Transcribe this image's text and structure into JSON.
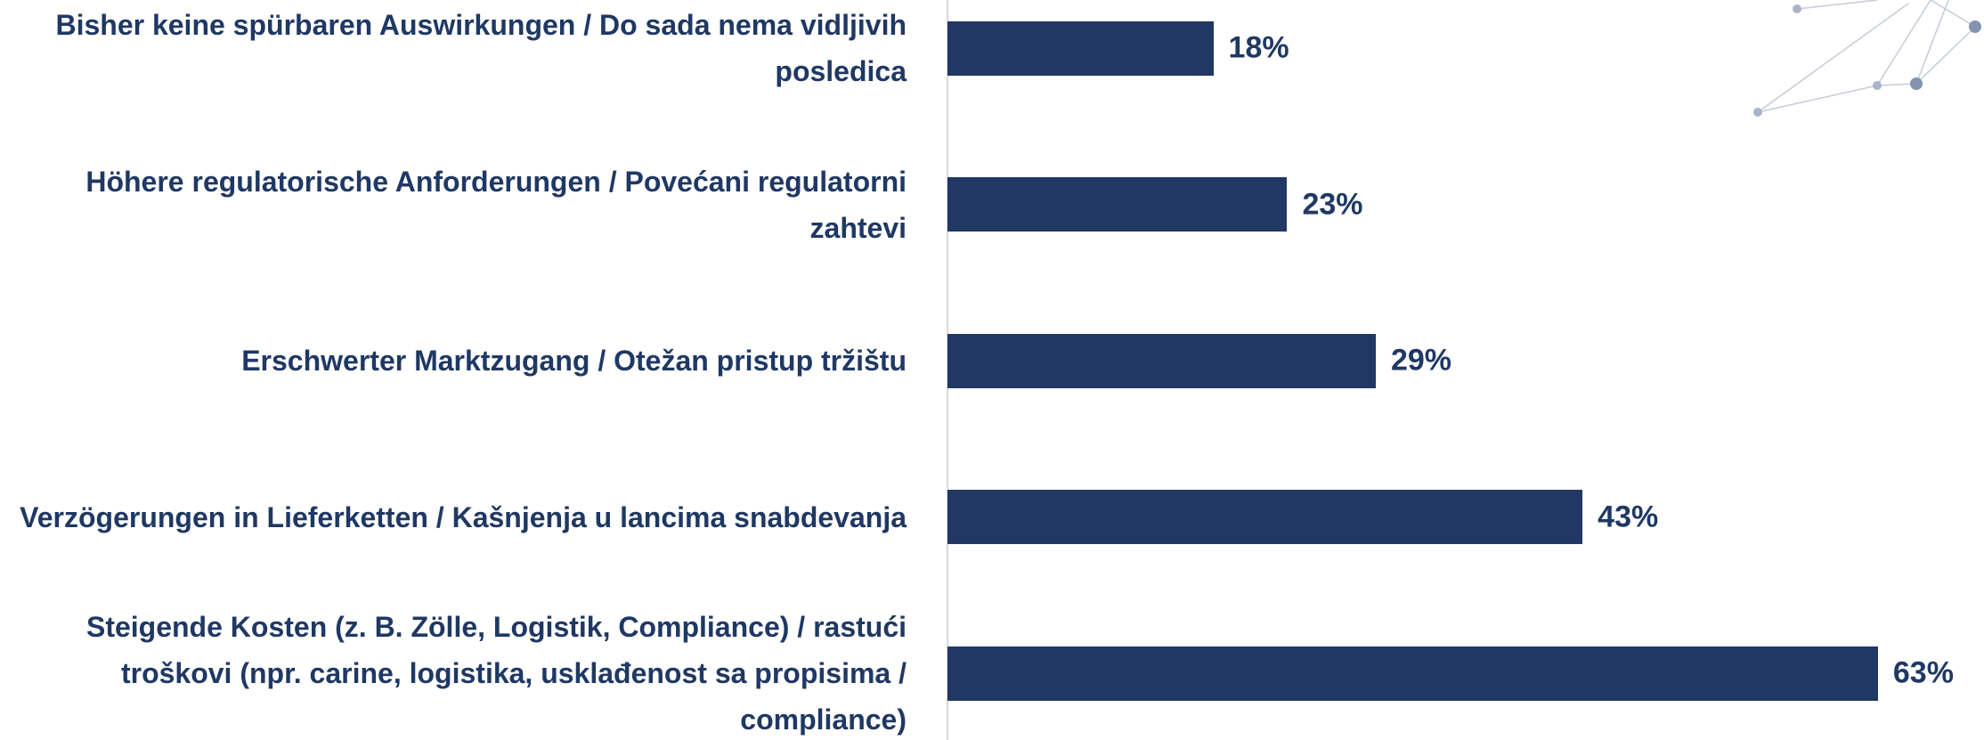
{
  "chart_data": {
    "type": "barh",
    "categories": [
      "Bisher keine spürbaren Auswirkungen / Do sada nema vidljivih posledica",
      "Höhere regulatorische Anforderungen / Povećani regulatorni zahtevi",
      "Erschwerter Marktzugang / Otežan pristup tržištu",
      "Verzögerungen in Lieferketten / Kašnjenja u lancima snabdevanja",
      "Steigende Kosten (z. B. Zölle, Logistik, Compliance) / rastući troškovi (npr. carine, logistika, usklađenost sa propisima / compliance)"
    ],
    "values": [
      18,
      23,
      29,
      43,
      63
    ],
    "value_labels": [
      "18%",
      "23%",
      "29%",
      "43%",
      "63%"
    ],
    "color": "#213864",
    "xlim": [
      0,
      70
    ]
  }
}
